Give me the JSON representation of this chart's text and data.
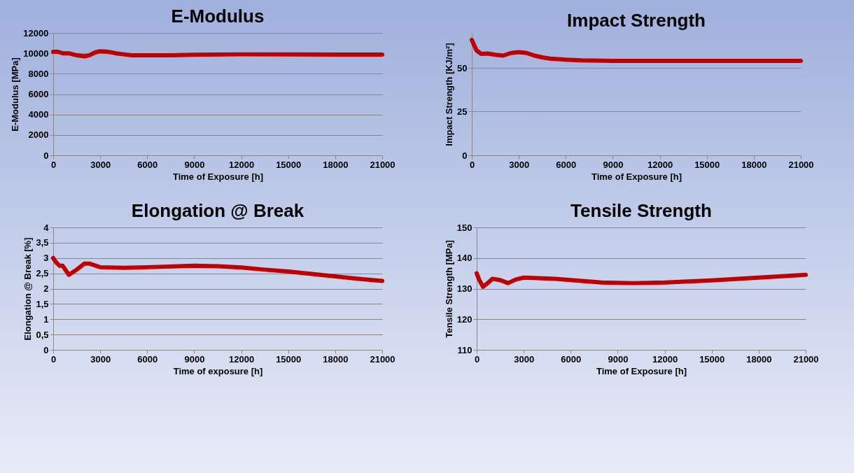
{
  "chart_data": [
    {
      "type": "line",
      "title": "E-Modulus",
      "xlabel": "Time of Exposure [h]",
      "ylabel": "E-Modulus [MPa]",
      "color": "#c00000",
      "grid": "y",
      "x": [
        0,
        300,
        600,
        1000,
        1500,
        2000,
        2300,
        2700,
        3000,
        3500,
        4000,
        4500,
        5000,
        6000,
        7500,
        9000,
        12000,
        15000,
        18000,
        21000
      ],
      "values": [
        10150,
        10150,
        10000,
        10000,
        9800,
        9700,
        9800,
        10100,
        10200,
        10150,
        10000,
        9900,
        9800,
        9800,
        9800,
        9850,
        9900,
        9900,
        9880,
        9880
      ],
      "xlim": [
        0,
        21000
      ],
      "xticks": [
        0,
        3000,
        6000,
        9000,
        12000,
        15000,
        18000,
        21000
      ],
      "ylim": [
        0,
        12000
      ],
      "yticks": [
        0,
        2000,
        4000,
        6000,
        8000,
        10000,
        12000
      ]
    },
    {
      "type": "line",
      "title": "Impact Strength",
      "xlabel": "Time of Exposure [h]",
      "ylabel": "Impact Strength [KJ/m²]",
      "color": "#c00000",
      "grid": "y",
      "x": [
        0,
        100,
        300,
        600,
        1000,
        1500,
        2000,
        2500,
        3000,
        3500,
        4000,
        4500,
        5000,
        6000,
        7000,
        9000,
        12000,
        15000,
        18000,
        21000
      ],
      "values": [
        66,
        64,
        60,
        58,
        58.2,
        57.5,
        57,
        58.5,
        59,
        58.5,
        57,
        56,
        55.3,
        54.7,
        54.3,
        54,
        54,
        54,
        54,
        54
      ],
      "xlim": [
        0,
        21000
      ],
      "xticks": [
        0,
        3000,
        6000,
        9000,
        12000,
        15000,
        18000,
        21000
      ],
      "ylim": [
        0,
        70
      ],
      "yticks": [
        0,
        25,
        50
      ]
    },
    {
      "type": "line",
      "title": "Elongation @ Break",
      "xlabel": "Time of exposure [h]",
      "ylabel": "Elongation @ Break [%]",
      "color": "#c00000",
      "grid": "y",
      "x": [
        0,
        200,
        400,
        600,
        1000,
        1500,
        2000,
        2300,
        3000,
        4500,
        6000,
        9000,
        10500,
        12000,
        13500,
        15000,
        16500,
        18000,
        19500,
        21000
      ],
      "values": [
        3.0,
        2.85,
        2.75,
        2.75,
        2.45,
        2.62,
        2.82,
        2.82,
        2.7,
        2.68,
        2.7,
        2.75,
        2.73,
        2.69,
        2.62,
        2.56,
        2.48,
        2.4,
        2.32,
        2.25
      ],
      "xlim": [
        0,
        21000
      ],
      "xticks": [
        0,
        3000,
        6000,
        9000,
        12000,
        15000,
        18000,
        21000
      ],
      "ylim": [
        0,
        4
      ],
      "yticks": [
        0,
        {
          "value": 0.5,
          "label": "0,5"
        },
        1,
        {
          "value": 1.5,
          "label": "1,5"
        },
        2,
        {
          "value": 2.5,
          "label": "2,5"
        },
        3,
        {
          "value": 3.5,
          "label": "3,5"
        },
        4
      ]
    },
    {
      "type": "line",
      "title": "Tensile Strength",
      "xlabel": "Time of Exposure [h]",
      "ylabel": "Tensile Strength [MPa]",
      "color": "#c00000",
      "grid": "y",
      "x": [
        0,
        150,
        400,
        700,
        1000,
        1500,
        2000,
        2500,
        3000,
        5000,
        6000,
        8000,
        10000,
        12000,
        15000,
        18000,
        21000
      ],
      "values": [
        135,
        133,
        130.6,
        131.8,
        133.2,
        132.8,
        131.8,
        133,
        133.6,
        133.2,
        132.8,
        132,
        131.8,
        132,
        132.7,
        133.6,
        134.5
      ],
      "xlim": [
        0,
        21000
      ],
      "xticks": [
        0,
        3000,
        6000,
        9000,
        12000,
        15000,
        18000,
        21000
      ],
      "ylim": [
        110,
        150
      ],
      "yticks": [
        110,
        120,
        130,
        140,
        150
      ]
    }
  ]
}
